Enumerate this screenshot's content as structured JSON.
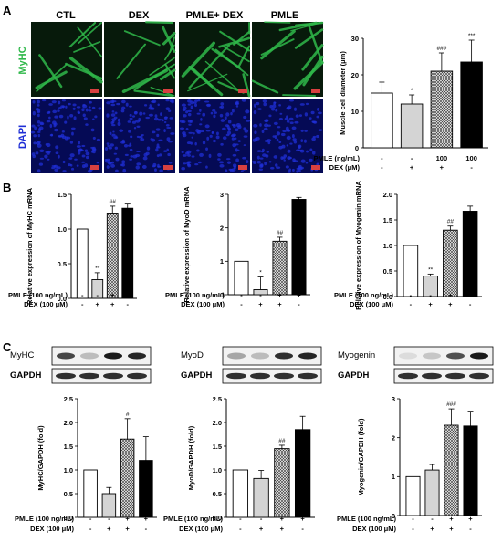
{
  "panels": {
    "a": "A",
    "b": "B",
    "c": "C"
  },
  "images": {
    "columns": [
      "CTL",
      "DEX",
      "PMLE+ DEX",
      "PMLE"
    ],
    "rows": [
      "MyHC",
      "DAPI"
    ],
    "colors": {
      "myhc": "#2fb84a",
      "dapi": "#1f2fd6",
      "dark": "#071a0b",
      "dapi_dark": "#050a55"
    },
    "scalebar": "50 μm"
  },
  "blots": [
    {
      "target": "MyHC",
      "loading": "GAPDH"
    },
    {
      "target": "MyoD",
      "loading": "GAPDH"
    },
    {
      "target": "Myogenin",
      "loading": "GAPDH"
    }
  ],
  "treatments": {
    "pmle_label": "PMLE (100 ng/mL)",
    "dex_label": "DEX (100 μM)",
    "pmle_label_a": "PMLE (ng/mL)",
    "dex_label_a": "DEX (μM)",
    "pmle": [
      "-",
      "-",
      "+",
      "+"
    ],
    "dex": [
      "-",
      "+",
      "+",
      "-"
    ],
    "pmle_a": [
      "-",
      "-",
      "100",
      "100"
    ],
    "dex_a": [
      "-",
      "+",
      "+",
      "-"
    ]
  },
  "chart_data": [
    {
      "id": "A",
      "type": "bar",
      "title": "",
      "ylabel": "Muscle cell diameter (μm)",
      "ylim": [
        0,
        30
      ],
      "ticks": [
        0,
        10,
        20,
        30
      ],
      "values": [
        15,
        12,
        21,
        23.5
      ],
      "errors": [
        3,
        2.5,
        5,
        6
      ],
      "annotations": [
        "",
        "*",
        "###",
        "***"
      ]
    },
    {
      "id": "B1",
      "type": "bar",
      "title": "",
      "ylabel": "Relative expression of MyHC mRNA",
      "ylim": [
        0,
        1.5
      ],
      "ticks": [
        0.0,
        0.5,
        1.0,
        1.5
      ],
      "values": [
        1.0,
        0.27,
        1.23,
        1.3
      ],
      "errors": [
        0,
        0.1,
        0.1,
        0.06
      ],
      "annotations": [
        "",
        "**",
        "##",
        ""
      ]
    },
    {
      "id": "B2",
      "type": "bar",
      "title": "",
      "ylabel": "Relative expression of MyoD mRNA",
      "ylim": [
        0,
        3
      ],
      "ticks": [
        0,
        1,
        2,
        3
      ],
      "values": [
        1.0,
        0.15,
        1.6,
        2.85
      ],
      "errors": [
        0,
        0.38,
        0.12,
        0.06
      ],
      "annotations": [
        "",
        "*",
        "##",
        ""
      ]
    },
    {
      "id": "B3",
      "type": "bar",
      "title": "",
      "ylabel": "Relative expression of Myogenin mRNA",
      "ylim": [
        0,
        2.0
      ],
      "ticks": [
        0.0,
        0.5,
        1.0,
        1.5,
        2.0
      ],
      "values": [
        1.0,
        0.4,
        1.3,
        1.67
      ],
      "errors": [
        0,
        0.04,
        0.08,
        0.1
      ],
      "annotations": [
        "",
        "**",
        "##",
        ""
      ]
    },
    {
      "id": "C1",
      "type": "bar",
      "title": "",
      "ylabel": "MyHC/GAPDH (fold)",
      "ylim": [
        0,
        2.5
      ],
      "ticks": [
        0.0,
        0.5,
        1.0,
        1.5,
        2.0,
        2.5
      ],
      "values": [
        1.0,
        0.5,
        1.65,
        1.2
      ],
      "errors": [
        0,
        0.13,
        0.43,
        0.5
      ],
      "annotations": [
        "",
        "",
        "#",
        ""
      ]
    },
    {
      "id": "C2",
      "type": "bar",
      "title": "",
      "ylabel": "MyoD/GAPDH (fold)",
      "ylim": [
        0,
        2.5
      ],
      "ticks": [
        0.0,
        0.5,
        1.0,
        1.5,
        2.0,
        2.5
      ],
      "values": [
        1.0,
        0.82,
        1.45,
        1.85
      ],
      "errors": [
        0,
        0.17,
        0.07,
        0.28
      ],
      "annotations": [
        "",
        "",
        "##",
        ""
      ]
    },
    {
      "id": "C3",
      "type": "bar",
      "title": "",
      "ylabel": "Myogenin/GAPDH (fold)",
      "ylim": [
        0,
        3
      ],
      "ticks": [
        0,
        1,
        2,
        3
      ],
      "values": [
        1.0,
        1.17,
        2.32,
        2.3
      ],
      "errors": [
        0,
        0.14,
        0.42,
        0.38
      ],
      "annotations": [
        "",
        "",
        "###",
        ""
      ]
    }
  ]
}
